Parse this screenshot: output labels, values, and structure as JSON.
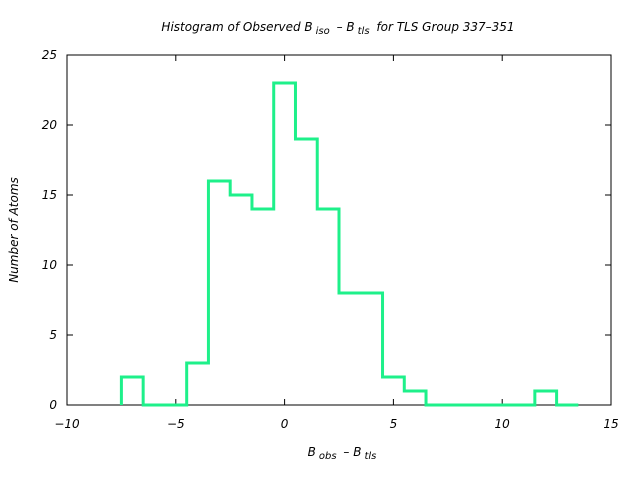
{
  "chart_data": {
    "type": "bar",
    "style": "step-histogram",
    "title": {
      "prefix": "Histogram of Observed B",
      "sub1": "iso",
      "middle": " – B",
      "sub2": "tls",
      "suffix": " for TLS Group 337–351"
    },
    "xlabel": {
      "main": "B",
      "sub1": "obs",
      "middle": " – B",
      "sub2": "tls"
    },
    "ylabel": "Number of Atoms",
    "xlim": [
      -10,
      15
    ],
    "ylim": [
      0,
      25
    ],
    "xticks": [
      -10,
      -5,
      0,
      5,
      10,
      15
    ],
    "yticks": [
      0,
      5,
      10,
      15,
      20,
      25
    ],
    "xtick_labels": [
      "−10",
      "−5",
      "0",
      "5",
      "10",
      "15"
    ],
    "ytick_labels": [
      "0",
      "5",
      "10",
      "15",
      "20",
      "25"
    ],
    "bin_width": 1,
    "bin_centers": [
      -7,
      -6,
      -5,
      -4,
      -3,
      -2,
      -1,
      0,
      1,
      2,
      3,
      4,
      5,
      6,
      7,
      8,
      9,
      10,
      11,
      12,
      13
    ],
    "values": [
      2,
      0,
      0,
      3,
      16,
      15,
      14,
      23,
      19,
      14,
      8,
      8,
      2,
      1,
      0,
      0,
      0,
      0,
      0,
      1,
      0
    ],
    "grid": false,
    "color": "#1ef08a"
  }
}
